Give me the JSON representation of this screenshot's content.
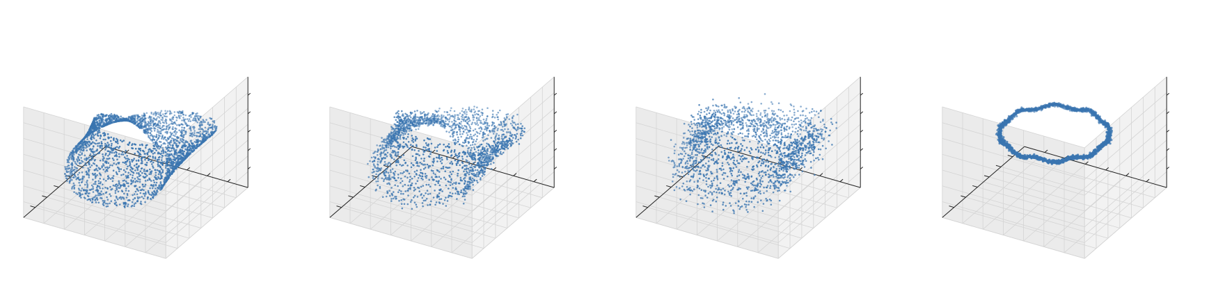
{
  "figure": {
    "panel_count": 4,
    "tick_labels_shown": false,
    "point_color": "#3a75b0",
    "pane_colors": {
      "back": "#f2f2f2",
      "side": "#ebebeb",
      "floor": "#f5f5f5"
    },
    "grid_color": "#d4d4d4"
  },
  "chart_data": [
    {
      "type": "scatter3d",
      "panel": 1,
      "title": "",
      "xlabel": "",
      "ylabel": "",
      "zlabel": "",
      "grid": true,
      "shape": "mobius_band",
      "point_count": 3000,
      "marker_size": "small",
      "xlim": [
        -1.5,
        1.5
      ],
      "ylim": [
        -1.5,
        1.5
      ],
      "zlim": [
        -1,
        1
      ],
      "shape_params": {
        "R": 1.0,
        "w": 0.55,
        "noise": 0.0
      }
    },
    {
      "type": "scatter3d",
      "panel": 2,
      "title": "",
      "xlabel": "",
      "ylabel": "",
      "zlabel": "",
      "grid": true,
      "shape": "mobius_band",
      "point_count": 2000,
      "marker_size": "small",
      "xlim": [
        -1.5,
        1.5
      ],
      "ylim": [
        -1.5,
        1.5
      ],
      "zlim": [
        -1,
        1
      ],
      "shape_params": {
        "R": 1.0,
        "w": 0.55,
        "noise": 0.05
      }
    },
    {
      "type": "scatter3d",
      "panel": 3,
      "title": "",
      "xlabel": "",
      "ylabel": "",
      "zlabel": "",
      "grid": true,
      "shape": "mobius_band",
      "point_count": 2000,
      "marker_size": "small",
      "xlim": [
        -1.5,
        1.5
      ],
      "ylim": [
        -1.5,
        1.5
      ],
      "zlim": [
        -1,
        1
      ],
      "shape_params": {
        "R": 1.0,
        "w": 0.55,
        "noise": 0.12
      }
    },
    {
      "type": "scatter3d",
      "panel": 4,
      "title": "",
      "xlabel": "",
      "ylabel": "",
      "zlabel": "",
      "grid": true,
      "shape": "circle",
      "point_count": 2000,
      "marker_size": "small",
      "xlim": [
        -1.5,
        1.5
      ],
      "ylim": [
        -1.5,
        1.5
      ],
      "zlim": [
        -1,
        1
      ],
      "shape_params": {
        "R": 1.0,
        "w": 0.0,
        "noise": 0.02
      }
    }
  ]
}
